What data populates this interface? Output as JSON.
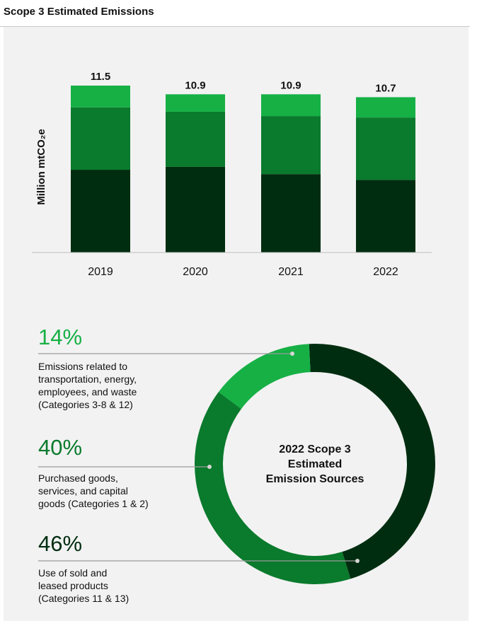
{
  "page": {
    "title": "Scope 3 Estimated Emissions"
  },
  "chart_data": [
    {
      "type": "bar",
      "stacked": true,
      "ylabel": "Million mtCO₂e",
      "categories": [
        "2019",
        "2020",
        "2021",
        "2022"
      ],
      "totals": [
        "11.5",
        "10.9",
        "10.9",
        "10.7"
      ],
      "series": [
        {
          "values": [
            5.7,
            5.9,
            5.4,
            5.0
          ]
        },
        {
          "values": [
            4.3,
            3.8,
            4.0,
            4.3
          ]
        },
        {
          "values": [
            1.5,
            1.2,
            1.5,
            1.4
          ]
        }
      ],
      "series_colors": [
        "#002d10",
        "#0a7a2c",
        "#16b045"
      ],
      "ylim": [
        0,
        11.5
      ],
      "grid": false
    },
    {
      "type": "pie",
      "donut": true,
      "center_label": [
        "2022 Scope 3",
        "Estimated",
        "Emission Sources"
      ],
      "slices": [
        {
          "label": "14%",
          "value": 14,
          "color": "#16b045",
          "description": [
            "Emissions related to",
            "transportation, energy,",
            "employees, and waste",
            "(Categories 3-8 & 12)"
          ]
        },
        {
          "label": "40%",
          "value": 40,
          "color": "#0a7a2c",
          "description": [
            "Purchased goods,",
            "services, and capital",
            "goods (Categories 1 & 2)"
          ]
        },
        {
          "label": "46%",
          "value": 46,
          "color": "#002d10",
          "description": [
            "Use of sold and",
            "leased products",
            "(Categories 11 & 13)"
          ]
        }
      ]
    }
  ]
}
